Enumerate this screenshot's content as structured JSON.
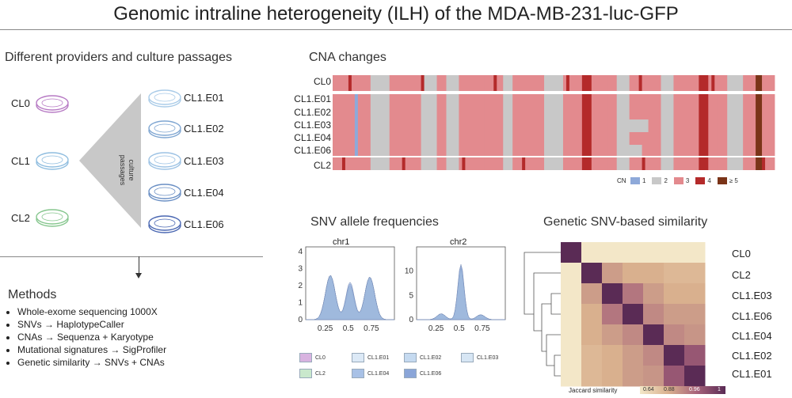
{
  "title": "Genomic intraline heterogeneity (ILH) of the MDA-MB-231-luc-GFP",
  "providers": {
    "heading": "Different providers and culture passages",
    "lines": [
      {
        "label": "CL0",
        "color": "#b77ac4"
      },
      {
        "label": "CL1",
        "color": "#8fbddf"
      },
      {
        "label": "CL2",
        "color": "#86c68e"
      }
    ],
    "passage_label_1": "culture",
    "passage_label_2": "passages",
    "passages": [
      {
        "label": "CL1.E01",
        "color": "#a9cbe8"
      },
      {
        "label": "CL1.E02",
        "color": "#7fa6d2"
      },
      {
        "label": "CL1.E03",
        "color": "#9cc2e4"
      },
      {
        "label": "CL1.E04",
        "color": "#6a8fc4"
      },
      {
        "label": "CL1.E06",
        "color": "#4a67b2"
      }
    ]
  },
  "methods": {
    "heading": "Methods",
    "items": [
      "Whole-exome sequencing 1000X",
      "SNVs → HaplotypeCaller",
      "CNAs → Sequenza + Karyotype",
      "Mutational signatures → SigProfiler",
      "Genetic similarity → SNVs + CNAs"
    ]
  },
  "cna": {
    "heading": "CNA changes",
    "rows": [
      "CL0",
      "CL1.E01",
      "CL1.E02",
      "CL1.E03",
      "CL1.E04",
      "CL1.E06",
      "CL2"
    ],
    "legend_title": "CN",
    "legend": [
      {
        "label": "1",
        "color": "#8ea9d9"
      },
      {
        "label": "2",
        "color": "#c8c8c8"
      },
      {
        "label": "3",
        "color": "#e38a8e"
      },
      {
        "label": "4",
        "color": "#b42a2a"
      },
      {
        "label": "≥ 5",
        "color": "#7a3418"
      }
    ]
  },
  "snv": {
    "heading": "SNV allele frequencies",
    "panels": [
      {
        "title": "chr1",
        "yticks": [
          "0",
          "1",
          "2",
          "3",
          "4"
        ],
        "xticks": [
          "0.25",
          "0.5",
          "0.75"
        ]
      },
      {
        "title": "chr2",
        "yticks": [
          "0",
          "5",
          "10"
        ],
        "xticks": [
          "0.25",
          "0.5",
          "0.75"
        ]
      }
    ],
    "legend": [
      {
        "label": "CL0",
        "color": "#d8b3e0"
      },
      {
        "label": "CL1.E01",
        "color": "#dce9f6"
      },
      {
        "label": "CL1.E02",
        "color": "#c5daf0"
      },
      {
        "label": "CL1.E03",
        "color": "#d7e6f4"
      },
      {
        "label": "CL2",
        "color": "#c9e8cc"
      },
      {
        "label": "CL1.E04",
        "color": "#a8c1e6"
      },
      {
        "label": "CL1.E06",
        "color": "#8aa5d8"
      }
    ]
  },
  "similarity": {
    "heading": "Genetic SNV-based similarity",
    "rows": [
      "CL0",
      "CL2",
      "CL1.E03",
      "CL1.E06",
      "CL1.E04",
      "CL1.E02",
      "CL1.E01"
    ],
    "legend_label": "Jaccard similarity",
    "legend_ticks": [
      "0.64",
      "0.88",
      "0.96",
      "1"
    ]
  }
}
